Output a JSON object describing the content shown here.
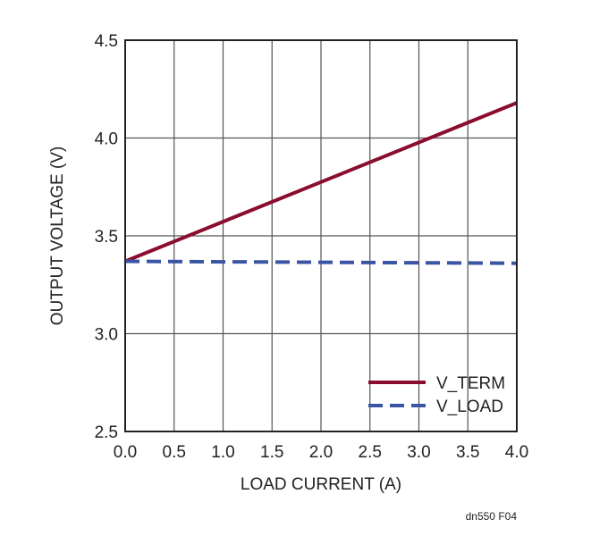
{
  "chart_data": {
    "type": "line",
    "title": "",
    "xlabel": "LOAD CURRENT (A)",
    "ylabel": "OUTPUT VOLTAGE (V)",
    "xlim": [
      0.0,
      4.0
    ],
    "ylim": [
      2.5,
      4.5
    ],
    "xticks": [
      "0.0",
      "0.5",
      "1.0",
      "1.5",
      "2.0",
      "2.5",
      "3.0",
      "3.5",
      "4.0"
    ],
    "yticks": [
      "2.5",
      "3.0",
      "3.5",
      "4.0",
      "4.5"
    ],
    "xtick_values": [
      0.0,
      0.5,
      1.0,
      1.5,
      2.0,
      2.5,
      3.0,
      3.5,
      4.0
    ],
    "ytick_values": [
      2.5,
      3.0,
      3.5,
      4.0,
      4.5
    ],
    "grid": true,
    "legend_position": "bottom-right",
    "series": [
      {
        "name": "V_TERM",
        "color": "#8b0d2e",
        "style": "solid",
        "x": [
          0.0,
          4.0
        ],
        "y": [
          3.37,
          4.18
        ]
      },
      {
        "name": "V_LOAD",
        "color": "#3a55a4",
        "style": "dashed",
        "x": [
          0.0,
          4.0
        ],
        "y": [
          3.37,
          3.36
        ]
      }
    ]
  },
  "figure_id": "dn550 F04"
}
